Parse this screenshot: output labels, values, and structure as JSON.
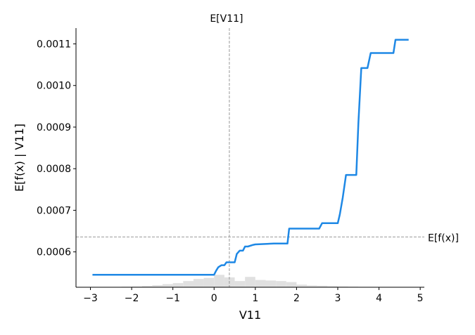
{
  "chart_data": {
    "type": "line",
    "xlabel": "V11",
    "ylabel": "E[f(x) | V11]",
    "xlim": [
      -3.35,
      5.1
    ],
    "ylim": [
      0.000515,
      0.001138
    ],
    "x_ticks": [
      -3,
      -2,
      -1,
      0,
      1,
      2,
      3,
      4,
      5
    ],
    "x_tick_labels": [
      "−3",
      "−2",
      "−1",
      "0",
      "1",
      "2",
      "3",
      "4",
      "5"
    ],
    "y_ticks": [
      0.0006,
      0.0007,
      0.0008,
      0.0009,
      0.001,
      0.0011
    ],
    "y_tick_labels": [
      "0.0006",
      "0.0007",
      "0.0008",
      "0.0009",
      "0.0010",
      "0.0011"
    ],
    "grid": false,
    "colors": {
      "line": "#1e88e5",
      "histogram": "#e0e0e0",
      "reference": "#999999"
    },
    "reference_lines": {
      "expected_feature": {
        "label": "E[V11]",
        "x": 0.37
      },
      "expected_output": {
        "label": "E[f(x)]",
        "y": 0.000636
      }
    },
    "series": [
      {
        "x": [
          -2.95,
          -0.5,
          0.0,
          0.05,
          0.1,
          0.18,
          0.25,
          0.3,
          0.5,
          0.55,
          0.62,
          0.7,
          0.75,
          0.82,
          0.95,
          1.0,
          1.45,
          1.78,
          1.82,
          2.55,
          2.62,
          3.0,
          3.05,
          3.12,
          3.2,
          3.32,
          3.45,
          3.5,
          3.57,
          3.58,
          3.72,
          3.8,
          4.35,
          4.4,
          4.72
        ],
        "y": [
          0.000545,
          0.000545,
          0.000545,
          0.000555,
          0.000563,
          0.000568,
          0.000568,
          0.000575,
          0.000575,
          0.000595,
          0.000603,
          0.000603,
          0.000613,
          0.000613,
          0.000617,
          0.000618,
          0.00062,
          0.00062,
          0.000656,
          0.000656,
          0.000669,
          0.000669,
          0.00069,
          0.00073,
          0.000785,
          0.000785,
          0.000785,
          0.00091,
          0.001042,
          0.001042,
          0.001042,
          0.001078,
          0.001078,
          0.00111,
          0.00111
        ]
      }
    ],
    "histogram": {
      "x": [
        -3.0,
        -2.75,
        -2.5,
        -2.25,
        -2.0,
        -1.75,
        -1.5,
        -1.25,
        -1.0,
        -0.75,
        -0.5,
        -0.25,
        0.0,
        0.25,
        0.5,
        0.75,
        1.0,
        1.25,
        1.5,
        1.75,
        2.0,
        2.25,
        2.5,
        2.75,
        3.0,
        3.25,
        3.5,
        3.75,
        4.0,
        4.25
      ],
      "heights": [
        0.0,
        0.0,
        0.0,
        0.002,
        0.003,
        0.005,
        0.008,
        0.012,
        0.016,
        0.024,
        0.032,
        0.036,
        0.048,
        0.038,
        0.024,
        0.04,
        0.028,
        0.026,
        0.024,
        0.02,
        0.01,
        0.007,
        0.006,
        0.004,
        0.003,
        0.002,
        0.001,
        0.0,
        0.0,
        0.0
      ]
    }
  }
}
